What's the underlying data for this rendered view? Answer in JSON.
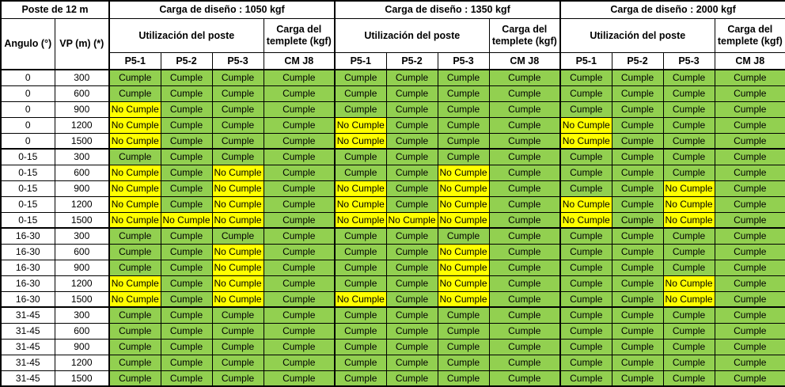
{
  "header": {
    "pole_label": "Poste de 12 m",
    "angle_col": "Angulo (°)",
    "vp_col": "VP (m) (*)",
    "sections": [
      {
        "design_load": "Carga de diseño : 1050 kgf",
        "utilization": "Utilización del poste",
        "templete": "Carga del templete (kgf)",
        "columns": [
          "P5-1",
          "P5-2",
          "P5-3",
          "CM J8"
        ]
      },
      {
        "design_load": "Carga de diseño : 1350 kgf",
        "utilization": "Utilización del poste",
        "templete": "Carga del templete (kgf)",
        "columns": [
          "P5-1",
          "P5-2",
          "P5-3",
          "CM J8"
        ]
      },
      {
        "design_load": "Carga de diseño : 2000 kgf",
        "utilization": "Utilización del poste",
        "templete": "Carga del templete (kgf)",
        "columns": [
          "P5-1",
          "P5-2",
          "P5-3",
          "CM J8"
        ]
      }
    ]
  },
  "legend": {
    "pass": "Cumple",
    "fail": "No Cumple"
  },
  "colors": {
    "pass": "#92D050",
    "fail": "#FFFF00",
    "border": "#000000",
    "header_bg": "#FFFFFF"
  },
  "rows": [
    {
      "angle": "0",
      "vp": "300",
      "results": [
        "Cumple",
        "Cumple",
        "Cumple",
        "Cumple",
        "Cumple",
        "Cumple",
        "Cumple",
        "Cumple",
        "Cumple",
        "Cumple",
        "Cumple",
        "Cumple"
      ]
    },
    {
      "angle": "0",
      "vp": "600",
      "results": [
        "Cumple",
        "Cumple",
        "Cumple",
        "Cumple",
        "Cumple",
        "Cumple",
        "Cumple",
        "Cumple",
        "Cumple",
        "Cumple",
        "Cumple",
        "Cumple"
      ]
    },
    {
      "angle": "0",
      "vp": "900",
      "results": [
        "No Cumple",
        "Cumple",
        "Cumple",
        "Cumple",
        "Cumple",
        "Cumple",
        "Cumple",
        "Cumple",
        "Cumple",
        "Cumple",
        "Cumple",
        "Cumple"
      ]
    },
    {
      "angle": "0",
      "vp": "1200",
      "results": [
        "No Cumple",
        "Cumple",
        "Cumple",
        "Cumple",
        "No Cumple",
        "Cumple",
        "Cumple",
        "Cumple",
        "No Cumple",
        "Cumple",
        "Cumple",
        "Cumple"
      ]
    },
    {
      "angle": "0",
      "vp": "1500",
      "results": [
        "No Cumple",
        "Cumple",
        "Cumple",
        "Cumple",
        "No Cumple",
        "Cumple",
        "Cumple",
        "Cumple",
        "No Cumple",
        "Cumple",
        "Cumple",
        "Cumple"
      ]
    },
    {
      "angle": "0-15",
      "vp": "300",
      "results": [
        "Cumple",
        "Cumple",
        "Cumple",
        "Cumple",
        "Cumple",
        "Cumple",
        "Cumple",
        "Cumple",
        "Cumple",
        "Cumple",
        "Cumple",
        "Cumple"
      ]
    },
    {
      "angle": "0-15",
      "vp": "600",
      "results": [
        "No Cumple",
        "Cumple",
        "No Cumple",
        "Cumple",
        "Cumple",
        "Cumple",
        "No Cumple",
        "Cumple",
        "Cumple",
        "Cumple",
        "Cumple",
        "Cumple"
      ]
    },
    {
      "angle": "0-15",
      "vp": "900",
      "results": [
        "No Cumple",
        "Cumple",
        "No Cumple",
        "Cumple",
        "No Cumple",
        "Cumple",
        "No Cumple",
        "Cumple",
        "Cumple",
        "Cumple",
        "No Cumple",
        "Cumple"
      ]
    },
    {
      "angle": "0-15",
      "vp": "1200",
      "results": [
        "No Cumple",
        "Cumple",
        "No Cumple",
        "Cumple",
        "No Cumple",
        "Cumple",
        "No Cumple",
        "Cumple",
        "No Cumple",
        "Cumple",
        "No Cumple",
        "Cumple"
      ]
    },
    {
      "angle": "0-15",
      "vp": "1500",
      "results": [
        "No Cumple",
        "No Cumple",
        "No Cumple",
        "Cumple",
        "No Cumple",
        "No Cumple",
        "No Cumple",
        "Cumple",
        "No Cumple",
        "Cumple",
        "No Cumple",
        "Cumple"
      ]
    },
    {
      "angle": "16-30",
      "vp": "300",
      "results": [
        "Cumple",
        "Cumple",
        "Cumple",
        "Cumple",
        "Cumple",
        "Cumple",
        "Cumple",
        "Cumple",
        "Cumple",
        "Cumple",
        "Cumple",
        "Cumple"
      ]
    },
    {
      "angle": "16-30",
      "vp": "600",
      "results": [
        "Cumple",
        "Cumple",
        "No Cumple",
        "Cumple",
        "Cumple",
        "Cumple",
        "No Cumple",
        "Cumple",
        "Cumple",
        "Cumple",
        "Cumple",
        "Cumple"
      ]
    },
    {
      "angle": "16-30",
      "vp": "900",
      "results": [
        "Cumple",
        "Cumple",
        "No Cumple",
        "Cumple",
        "Cumple",
        "Cumple",
        "No Cumple",
        "Cumple",
        "Cumple",
        "Cumple",
        "Cumple",
        "Cumple"
      ]
    },
    {
      "angle": "16-30",
      "vp": "1200",
      "results": [
        "No Cumple",
        "Cumple",
        "No Cumple",
        "Cumple",
        "Cumple",
        "Cumple",
        "No Cumple",
        "Cumple",
        "Cumple",
        "Cumple",
        "No Cumple",
        "Cumple"
      ]
    },
    {
      "angle": "16-30",
      "vp": "1500",
      "results": [
        "No Cumple",
        "Cumple",
        "No Cumple",
        "Cumple",
        "No Cumple",
        "Cumple",
        "No Cumple",
        "Cumple",
        "Cumple",
        "Cumple",
        "No Cumple",
        "Cumple"
      ]
    },
    {
      "angle": "31-45",
      "vp": "300",
      "results": [
        "Cumple",
        "Cumple",
        "Cumple",
        "Cumple",
        "Cumple",
        "Cumple",
        "Cumple",
        "Cumple",
        "Cumple",
        "Cumple",
        "Cumple",
        "Cumple"
      ]
    },
    {
      "angle": "31-45",
      "vp": "600",
      "results": [
        "Cumple",
        "Cumple",
        "Cumple",
        "Cumple",
        "Cumple",
        "Cumple",
        "Cumple",
        "Cumple",
        "Cumple",
        "Cumple",
        "Cumple",
        "Cumple"
      ]
    },
    {
      "angle": "31-45",
      "vp": "900",
      "results": [
        "Cumple",
        "Cumple",
        "Cumple",
        "Cumple",
        "Cumple",
        "Cumple",
        "Cumple",
        "Cumple",
        "Cumple",
        "Cumple",
        "Cumple",
        "Cumple"
      ]
    },
    {
      "angle": "31-45",
      "vp": "1200",
      "results": [
        "Cumple",
        "Cumple",
        "Cumple",
        "Cumple",
        "Cumple",
        "Cumple",
        "Cumple",
        "Cumple",
        "Cumple",
        "Cumple",
        "Cumple",
        "Cumple"
      ]
    },
    {
      "angle": "31-45",
      "vp": "1500",
      "results": [
        "Cumple",
        "Cumple",
        "Cumple",
        "Cumple",
        "Cumple",
        "Cumple",
        "Cumple",
        "Cumple",
        "Cumple",
        "Cumple",
        "Cumple",
        "Cumple"
      ]
    }
  ]
}
